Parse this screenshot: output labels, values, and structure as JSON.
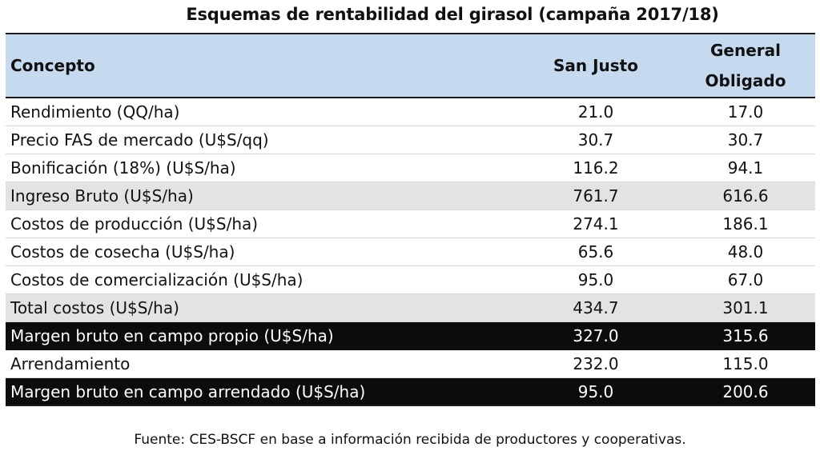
{
  "title": "Esquemas de rentabilidad del girasol (campaña 2017/18)",
  "header": {
    "concepto": "Concepto",
    "san_justo": "San Justo",
    "general_obligado_line1": "General",
    "general_obligado_line2": "Obligado"
  },
  "rows": [
    {
      "concepto": "Rendimiento (QQ/ha)",
      "san_justo": "21.0",
      "general_obligado": "17.0"
    },
    {
      "concepto": "Precio FAS de mercado (U$S/qq)",
      "san_justo": "30.7",
      "general_obligado": "30.7"
    },
    {
      "concepto": "Bonificación (18%) (U$S/ha)",
      "san_justo": "116.2",
      "general_obligado": "94.1"
    },
    {
      "concepto": "Ingreso Bruto (U$S/ha)",
      "san_justo": "761.7",
      "general_obligado": "616.6"
    },
    {
      "concepto": "Costos de producción (U$S/ha)",
      "san_justo": "274.1",
      "general_obligado": "186.1"
    },
    {
      "concepto": "Costos de cosecha (U$S/ha)",
      "san_justo": "65.6",
      "general_obligado": "48.0"
    },
    {
      "concepto": "Costos de comercialización (U$S/ha)",
      "san_justo": "95.0",
      "general_obligado": "67.0"
    },
    {
      "concepto": "Total costos (U$S/ha)",
      "san_justo": "434.7",
      "general_obligado": "301.1"
    },
    {
      "concepto": "Margen bruto en campo propio (U$S/ha)",
      "san_justo": "327.0",
      "general_obligado": "315.6"
    },
    {
      "concepto": "Arrendamiento",
      "san_justo": "232.0",
      "general_obligado": "115.0"
    },
    {
      "concepto": "Margen bruto en campo arrendado (U$S/ha)",
      "san_justo": "95.0",
      "general_obligado": "200.6"
    }
  ],
  "colors": {
    "header_bg": "#c5d9ef",
    "shaded_row_bg": "#e3e3e3",
    "dark_row_bg": "#0c0c0c"
  },
  "source": "Fuente: CES-BSCF en base a información recibida de productores y cooperativas."
}
